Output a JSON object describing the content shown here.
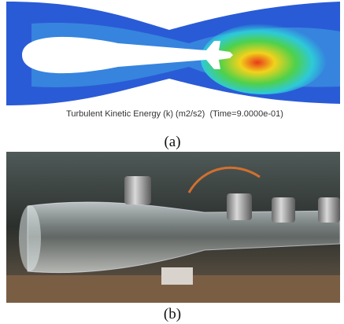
{
  "figure": {
    "panels": [
      {
        "caption": "Turbulent Kinetic Energy (k) (m2/s2)  (Time=9.0000e-01)",
        "label": "(a)"
      },
      {
        "label": "(b)"
      }
    ]
  }
}
